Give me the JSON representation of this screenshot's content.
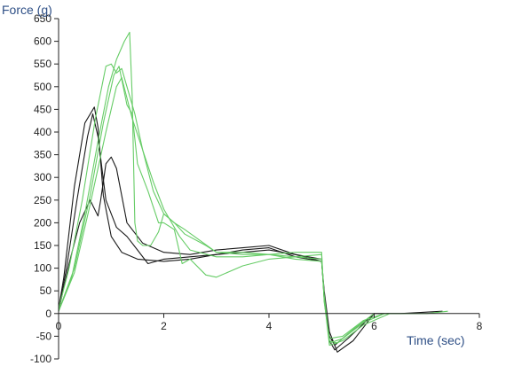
{
  "chart_data": {
    "type": "line",
    "xlabel": "Time (sec)",
    "ylabel": "Force (g)",
    "xlim": [
      0,
      8
    ],
    "ylim": [
      -100,
      650
    ],
    "x_ticks": [
      0,
      2,
      4,
      6,
      8
    ],
    "y_ticks": [
      -100,
      -50,
      0,
      50,
      100,
      150,
      200,
      250,
      300,
      350,
      400,
      450,
      500,
      550,
      600,
      650
    ],
    "grid": false,
    "colors": {
      "black": "#1a1a1a",
      "green": "#66cc66"
    },
    "series": [
      {
        "color": "black",
        "x": [
          0,
          0.1,
          0.3,
          0.5,
          0.68,
          0.75,
          0.85,
          1.0,
          1.2,
          1.5,
          2.0,
          2.5,
          3.0,
          3.5,
          4.0,
          4.5,
          5.0,
          5.05,
          5.15,
          5.25,
          5.5,
          6.0,
          6.5,
          7.3
        ],
        "y": [
          10,
          80,
          280,
          420,
          455,
          410,
          260,
          170,
          135,
          120,
          115,
          120,
          130,
          135,
          140,
          130,
          120,
          30,
          -60,
          -80,
          -55,
          0,
          0,
          5
        ]
      },
      {
        "color": "black",
        "x": [
          0,
          0.15,
          0.35,
          0.55,
          0.65,
          0.75,
          0.9,
          1.1,
          1.3,
          1.5,
          1.7,
          2.0,
          2.5,
          3.0,
          3.5,
          4.0,
          4.5,
          5.0,
          5.05,
          5.15,
          5.25,
          5.5,
          6.0
        ],
        "y": [
          5,
          100,
          250,
          390,
          440,
          390,
          250,
          190,
          170,
          140,
          110,
          120,
          125,
          130,
          140,
          145,
          125,
          115,
          40,
          -50,
          -70,
          -45,
          0
        ]
      },
      {
        "color": "black",
        "x": [
          0,
          0.2,
          0.4,
          0.6,
          0.75,
          0.8,
          0.9,
          1.0,
          1.1,
          1.3,
          1.6,
          2.0,
          2.5,
          3.0,
          3.5,
          4.0,
          4.5,
          5.0,
          5.05,
          5.15,
          5.3,
          5.6,
          6.0
        ],
        "y": [
          5,
          110,
          200,
          250,
          215,
          250,
          330,
          345,
          320,
          200,
          155,
          135,
          130,
          140,
          145,
          150,
          130,
          115,
          50,
          -40,
          -85,
          -60,
          0
        ]
      },
      {
        "color": "green",
        "x": [
          0,
          0.2,
          0.45,
          0.7,
          0.9,
          1.0,
          1.1,
          1.2,
          1.3,
          1.45,
          1.6,
          1.8,
          2.0,
          2.2,
          2.4,
          3.0,
          3.5,
          4.0,
          4.5,
          5.0,
          5.05,
          5.15,
          5.3,
          5.6,
          6.0
        ],
        "y": [
          10,
          100,
          250,
          430,
          545,
          550,
          530,
          540,
          500,
          440,
          360,
          270,
          220,
          200,
          185,
          135,
          135,
          130,
          120,
          115,
          40,
          -60,
          -65,
          -35,
          0
        ]
      },
      {
        "color": "green",
        "x": [
          0,
          0.25,
          0.5,
          0.75,
          0.95,
          1.1,
          1.25,
          1.35,
          1.4,
          1.45,
          1.5,
          1.6,
          1.75,
          1.9,
          2.0,
          2.2,
          2.4,
          2.8,
          3.0,
          3.5,
          4.0,
          4.5,
          5.0,
          5.05,
          5.15,
          5.4,
          5.8,
          6.2
        ],
        "y": [
          5,
          80,
          220,
          380,
          500,
          560,
          600,
          620,
          480,
          200,
          160,
          150,
          150,
          180,
          220,
          200,
          175,
          150,
          135,
          130,
          130,
          125,
          120,
          35,
          -65,
          -55,
          -20,
          0
        ]
      },
      {
        "color": "green",
        "x": [
          0,
          0.3,
          0.6,
          0.85,
          1.05,
          1.15,
          1.3,
          1.4,
          1.5,
          1.7,
          1.9,
          2.0,
          2.2,
          2.35,
          2.5,
          2.8,
          3.0,
          3.5,
          4.0,
          4.5,
          5.0,
          5.05,
          5.15,
          5.4,
          5.8,
          6.3
        ],
        "y": [
          5,
          100,
          260,
          420,
          525,
          545,
          460,
          440,
          330,
          270,
          200,
          200,
          185,
          110,
          120,
          85,
          80,
          105,
          120,
          125,
          130,
          30,
          -70,
          -60,
          -25,
          0
        ]
      },
      {
        "color": "green",
        "x": [
          0,
          0.3,
          0.6,
          0.9,
          1.1,
          1.2,
          1.4,
          1.6,
          1.8,
          2.0,
          2.3,
          2.5,
          3.0,
          3.5,
          4.0,
          4.5,
          5.0,
          5.05,
          5.15,
          5.4,
          5.8,
          6.2,
          7.0,
          7.4
        ],
        "y": [
          5,
          90,
          240,
          400,
          500,
          520,
          430,
          360,
          290,
          230,
          170,
          140,
          125,
          125,
          130,
          135,
          135,
          25,
          -55,
          -50,
          -15,
          0,
          0,
          5
        ]
      }
    ]
  }
}
